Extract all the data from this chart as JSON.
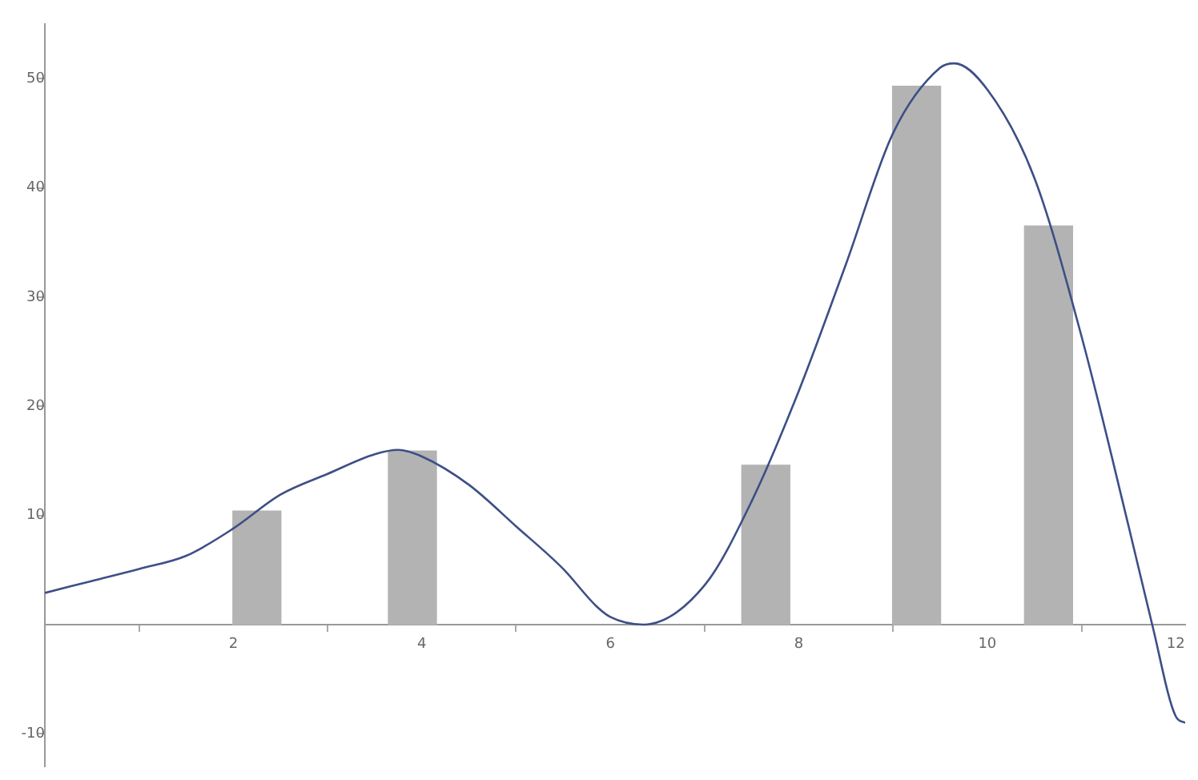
{
  "chart_data": {
    "type": "bar",
    "xlim": [
      0,
      12.1
    ],
    "ylim": [
      -13,
      55
    ],
    "xticks": [
      2,
      4,
      6,
      8,
      10,
      12
    ],
    "yticks": [
      -10,
      10,
      20,
      30,
      40,
      50
    ],
    "grid": false,
    "legend": false,
    "series": [
      {
        "color": "#b3b3b3",
        "x": [
          2.25,
          3.9,
          7.65,
          9.25,
          10.65
        ],
        "values": [
          10.4,
          15.9,
          14.6,
          49.3,
          36.5
        ]
      },
      {
        "type": "line",
        "color": "#3d4f86",
        "marker": "none",
        "x": [
          0,
          0.5,
          1,
          1.5,
          2,
          2.5,
          3,
          3.5,
          3.75,
          4,
          4.5,
          5,
          5.5,
          5.85,
          6,
          6.35,
          7,
          7.5,
          8,
          8.5,
          9,
          9.5,
          9.65,
          10,
          10.5,
          11,
          11.5,
          11.75,
          12,
          12.1
        ],
        "values": [
          2.9,
          4,
          5.1,
          6.3,
          8.8,
          11.9,
          13.8,
          15.6,
          16,
          15.4,
          12.8,
          9,
          5.1,
          1.7,
          0.7,
          0,
          3.6,
          11.3,
          21.4,
          33,
          45,
          51,
          51.4,
          49,
          40.9,
          26.4,
          9,
          0,
          -8.4,
          -9
        ]
      }
    ]
  }
}
